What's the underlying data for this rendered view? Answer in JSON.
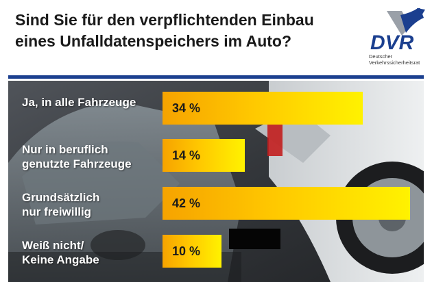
{
  "title_lines": [
    "Sind Sie für den verpflichtenden Einbau",
    "eines Unfalldatenspeichers im Auto?"
  ],
  "logo": {
    "text": "DVR",
    "subtitle_lines": [
      "Deutscher",
      "Verkehrssicherheitsrat"
    ],
    "colors": {
      "blue": "#1b3f8f",
      "grey": "#9aa0a8"
    }
  },
  "colors": {
    "rule": "#1b3f8f",
    "bar_start": "#f6a300",
    "bar_end": "#fff200",
    "label": "#ffffff"
  },
  "chart_data": {
    "type": "bar",
    "orientation": "horizontal",
    "title": "Sind Sie für den verpflichtenden Einbau eines Unfalldatenspeichers im Auto?",
    "categories": [
      [
        "Ja, in alle Fahrzeuge"
      ],
      [
        "Nur in beruflich",
        "genutzte Fahrzeuge"
      ],
      [
        "Grundsätzlich",
        "nur freiwillig"
      ],
      [
        "Weiß nicht/",
        "Keine Angabe"
      ]
    ],
    "values": [
      34,
      14,
      42,
      10
    ],
    "value_labels": [
      "34 %",
      "14 %",
      "42 %",
      "10 %"
    ],
    "unit": "%",
    "xlim": [
      0,
      42
    ],
    "grid": false,
    "legend": "none"
  }
}
